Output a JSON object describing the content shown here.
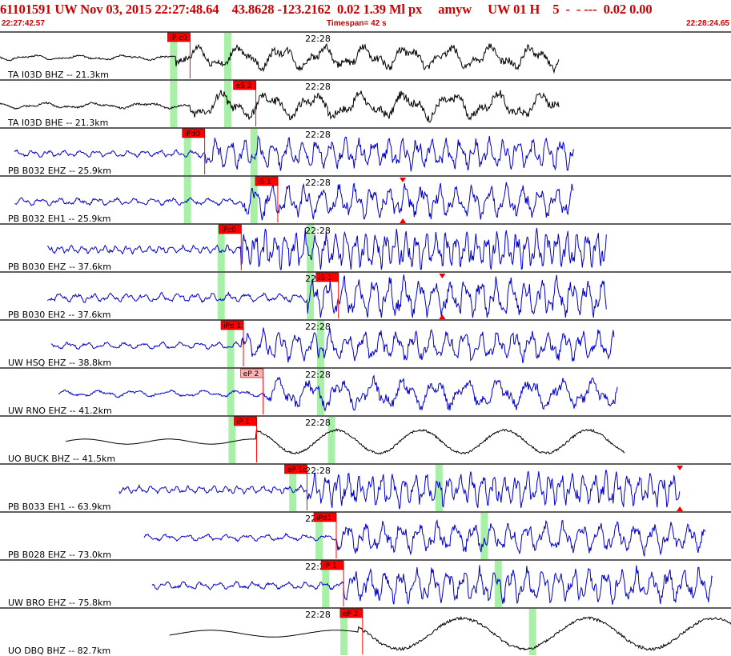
{
  "header": {
    "title": "61101591 UW Nov 03, 2015 22:27:48.64    43.8628 -123.2162  0.02 1.39 Ml px     amyw     UW 01 H    5  -  - ---  0.02 0.00",
    "start_time": "22:27:42.57",
    "timespan": "Timespan=  42 s",
    "end_time": "22:28:24.65"
  },
  "colors": {
    "header_text": "#cc0000",
    "pick_box": "#ff0000",
    "pick_box_light": "#ffb0b0",
    "window_band": "#a8f0a8",
    "trace_blue": "#0000cc",
    "trace_black": "#000000"
  },
  "chart_data": {
    "type": "line",
    "minute_mark_label": "22:28",
    "traces": [
      {
        "label": "TA I03D BHZ -- 21.3km",
        "color": "black",
        "amp": 16,
        "freq": 0.12,
        "start": 0.0,
        "end": 0.765,
        "onset": 0.24,
        "green": [
          0.237,
          0.311
        ],
        "pick": {
          "label": "iP c0",
          "x": 0.26,
          "style": "red"
        },
        "markers": false,
        "seed": 1
      },
      {
        "label": "TA I03D BHE -- 21.3km",
        "color": "black",
        "amp": 18,
        "freq": 0.11,
        "start": 0.0,
        "end": 0.765,
        "onset": 0.26,
        "green": [
          0.237,
          0.311
        ],
        "pick": {
          "label": "eS 2",
          "x": 0.35,
          "style": "red"
        },
        "markers": false,
        "seed": 2
      },
      {
        "label": "PB B032 EHZ -- 25.9km",
        "color": "blue",
        "amp": 20,
        "freq": 0.35,
        "start": 0.02,
        "end": 0.785,
        "onset": 0.28,
        "green": [
          0.256,
          0.347
        ],
        "pick": {
          "label": "iPd0",
          "x": 0.28,
          "style": "red"
        },
        "markers": false,
        "seed": 3
      },
      {
        "label": "PB B032 EH1 -- 25.9km",
        "color": "blue",
        "amp": 22,
        "freq": 0.3,
        "start": 0.02,
        "end": 0.785,
        "onset": 0.33,
        "green": [
          0.256,
          0.347
        ],
        "pick": {
          "label": "iS 1",
          "x": 0.38,
          "style": "red"
        },
        "markers": true,
        "marker_x": 0.551,
        "seed": 4
      },
      {
        "label": "PB B030 EHZ -- 37.6km",
        "color": "blue",
        "amp": 24,
        "freq": 0.5,
        "start": 0.065,
        "end": 0.83,
        "onset": 0.33,
        "green": [
          0.302,
          0.424
        ],
        "pick": {
          "label": "iPc0",
          "x": 0.33,
          "style": "red"
        },
        "markers": false,
        "seed": 5
      },
      {
        "label": "PB B030 EH2 -- 37.6km",
        "color": "blue",
        "amp": 26,
        "freq": 0.33,
        "start": 0.065,
        "end": 0.83,
        "onset": 0.42,
        "green": [
          0.302,
          0.424
        ],
        "pick": {
          "label": "iS 1",
          "x": 0.463,
          "style": "red"
        },
        "markers": true,
        "marker_x": 0.605,
        "seed": 6
      },
      {
        "label": "UW HSQ EHZ -- 38.8km",
        "color": "blue",
        "amp": 20,
        "freq": 0.3,
        "start": 0.07,
        "end": 0.84,
        "onset": 0.33,
        "green": [
          0.315,
          0.438
        ],
        "pick": {
          "label": "iPd 1",
          "x": 0.333,
          "style": "red"
        },
        "markers": false,
        "seed": 7
      },
      {
        "label": "UW RNO EHZ -- 41.2km",
        "color": "blue",
        "amp": 20,
        "freq": 0.16,
        "start": 0.08,
        "end": 0.845,
        "onset": 0.36,
        "green": [
          0.315,
          0.438
        ],
        "pick": {
          "label": "eP 2",
          "x": 0.36,
          "style": "light"
        },
        "markers": false,
        "seed": 8
      },
      {
        "label": "UO BUCK BHZ -- 41.5km",
        "color": "black",
        "amp": 18,
        "freq": 0.06,
        "start": 0.09,
        "end": 0.855,
        "onset": 0.35,
        "green": [
          0.317,
          0.453
        ],
        "pick": {
          "label": "iP 1",
          "x": 0.351,
          "style": "red"
        },
        "markers": false,
        "seed": 9
      },
      {
        "label": "PB B033 EH1 -- 63.9km",
        "color": "blue",
        "amp": 22,
        "freq": 0.45,
        "start": 0.163,
        "end": 0.93,
        "onset": 0.42,
        "green": [
          0.4,
          0.6
        ],
        "pick": {
          "label": "eP 1c",
          "x": 0.42,
          "style": "red"
        },
        "markers": true,
        "marker_x": 0.93,
        "seed": 10
      },
      {
        "label": "PB B028 EHZ -- 73.0km",
        "color": "blue",
        "amp": 20,
        "freq": 0.28,
        "start": 0.197,
        "end": 0.965,
        "onset": 0.46,
        "green": [
          0.436,
          0.662
        ],
        "pick": {
          "label": "iPd1",
          "x": 0.46,
          "style": "red"
        },
        "markers": false,
        "seed": 11
      },
      {
        "label": "UW BRO EHZ -- 75.8km",
        "color": "blue",
        "amp": 22,
        "freq": 0.32,
        "start": 0.208,
        "end": 0.975,
        "onset": 0.47,
        "green": [
          0.445,
          0.681
        ],
        "pick": {
          "label": "iP 1",
          "x": 0.47,
          "style": "red"
        },
        "markers": false,
        "seed": 12
      },
      {
        "label": "UO DBQ BHZ -- 82.7km",
        "color": "black",
        "amp": 24,
        "freq": 0.04,
        "start": 0.232,
        "end": 1.0,
        "onset": 0.49,
        "green": [
          0.47,
          0.728
        ],
        "pick": {
          "label": "eP 2",
          "x": 0.496,
          "style": "red"
        },
        "markers": false,
        "seed": 13
      }
    ],
    "minute_mark_position": 0.435,
    "xlim_seconds": [
      0,
      42
    ]
  }
}
